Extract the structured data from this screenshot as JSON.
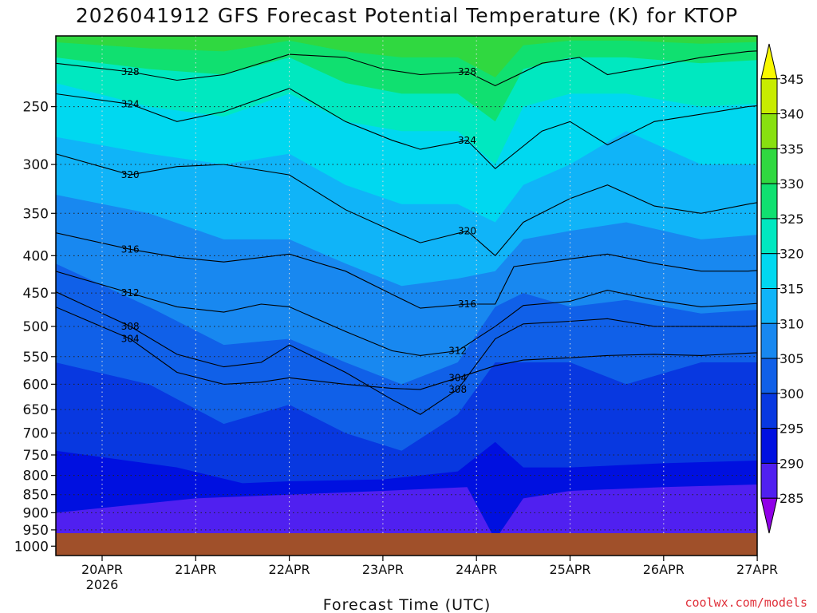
{
  "chart_data": {
    "type": "heatmap",
    "title": "2026041912 GFS Forecast Potential Temperature (K) for KTOP",
    "xlabel": "Forecast Time (UTC)",
    "ylabel": "",
    "credit": "coolwx.com/models",
    "y_axis": {
      "scale": "log-pressure",
      "inverted": true,
      "ticks": [
        "250",
        "300",
        "350",
        "400",
        "450",
        "500",
        "550",
        "600",
        "650",
        "700",
        "750",
        "800",
        "850",
        "900",
        "950",
        "1000"
      ]
    },
    "x_axis": {
      "ticks": [
        "20APR",
        "21APR",
        "22APR",
        "23APR",
        "24APR",
        "25APR",
        "26APR",
        "27APR"
      ],
      "year_label": "2026"
    },
    "colorbar": {
      "ticks": [
        "285",
        "290",
        "295",
        "300",
        "305",
        "310",
        "315",
        "320",
        "325",
        "330",
        "335",
        "340",
        "345"
      ],
      "colors": [
        "#9000e8",
        "#5020f0",
        "#0010e0",
        "#0838e0",
        "#1060e8",
        "#1888f0",
        "#10b4f8",
        "#00d8f0",
        "#00e8c0",
        "#10e070",
        "#30d840",
        "#88e010",
        "#c8ec00",
        "#f8f800"
      ]
    },
    "ground_color": "#a0502a",
    "contour_interval": 4,
    "grid": true,
    "series": [
      {
        "name": "328",
        "values": [
          [
            0.0,
            218
          ],
          [
            0.3,
            224
          ],
          [
            0.8,
            230
          ],
          [
            1.3,
            226
          ],
          [
            2.0,
            212
          ],
          [
            2.6,
            214
          ],
          [
            3.0,
            222
          ],
          [
            3.4,
            226
          ],
          [
            3.9,
            224
          ],
          [
            4.2,
            234
          ],
          [
            4.7,
            218
          ],
          [
            5.1,
            214
          ],
          [
            5.4,
            226
          ],
          [
            5.9,
            220
          ],
          [
            6.4,
            214
          ],
          [
            6.9,
            210
          ],
          [
            7.5,
            208
          ]
        ]
      },
      {
        "name": "324",
        "values": [
          [
            0.0,
            240
          ],
          [
            0.3,
            248
          ],
          [
            0.8,
            262
          ],
          [
            1.3,
            254
          ],
          [
            2.0,
            236
          ],
          [
            2.6,
            262
          ],
          [
            3.1,
            278
          ],
          [
            3.4,
            286
          ],
          [
            3.9,
            278
          ],
          [
            4.2,
            304
          ],
          [
            4.7,
            270
          ],
          [
            5.0,
            262
          ],
          [
            5.4,
            282
          ],
          [
            5.9,
            262
          ],
          [
            6.4,
            256
          ],
          [
            6.9,
            250
          ],
          [
            7.5,
            246
          ]
        ]
      },
      {
        "name": "320",
        "values": [
          [
            0.0,
            290
          ],
          [
            0.3,
            310
          ],
          [
            0.8,
            302
          ],
          [
            1.3,
            300
          ],
          [
            2.0,
            310
          ],
          [
            2.6,
            346
          ],
          [
            3.1,
            370
          ],
          [
            3.4,
            384
          ],
          [
            3.9,
            370
          ],
          [
            4.2,
            400
          ],
          [
            4.5,
            360
          ],
          [
            5.0,
            334
          ],
          [
            5.4,
            320
          ],
          [
            5.9,
            342
          ],
          [
            6.4,
            350
          ],
          [
            6.9,
            340
          ],
          [
            7.5,
            330
          ]
        ]
      },
      {
        "name": "316",
        "values": [
          [
            0.0,
            372
          ],
          [
            0.3,
            392
          ],
          [
            0.8,
            402
          ],
          [
            1.3,
            408
          ],
          [
            2.0,
            398
          ],
          [
            2.6,
            420
          ],
          [
            3.1,
            452
          ],
          [
            3.4,
            472
          ],
          [
            3.9,
            466
          ],
          [
            4.2,
            466
          ],
          [
            4.4,
            414
          ],
          [
            5.0,
            404
          ],
          [
            5.4,
            398
          ],
          [
            5.9,
            410
          ],
          [
            6.4,
            420
          ],
          [
            6.9,
            420
          ],
          [
            7.5,
            414
          ]
        ]
      },
      {
        "name": "312",
        "values": [
          [
            0.0,
            420
          ],
          [
            0.3,
            450
          ],
          [
            0.8,
            470
          ],
          [
            1.3,
            478
          ],
          [
            1.7,
            466
          ],
          [
            2.0,
            470
          ],
          [
            2.6,
            508
          ],
          [
            3.1,
            540
          ],
          [
            3.4,
            548
          ],
          [
            3.8,
            540
          ],
          [
            4.2,
            500
          ],
          [
            4.5,
            468
          ],
          [
            5.0,
            462
          ],
          [
            5.4,
            446
          ],
          [
            5.9,
            460
          ],
          [
            6.4,
            470
          ],
          [
            6.9,
            466
          ],
          [
            7.5,
            460
          ]
        ]
      },
      {
        "name": "308",
        "values": [
          [
            0.0,
            448
          ],
          [
            0.3,
            500
          ],
          [
            0.8,
            546
          ],
          [
            1.3,
            568
          ],
          [
            1.7,
            560
          ],
          [
            2.0,
            530
          ],
          [
            2.6,
            578
          ],
          [
            3.1,
            630
          ],
          [
            3.4,
            660
          ],
          [
            3.8,
            610
          ],
          [
            4.2,
            520
          ],
          [
            4.5,
            496
          ],
          [
            5.0,
            492
          ],
          [
            5.4,
            488
          ],
          [
            5.9,
            500
          ],
          [
            6.4,
            500
          ],
          [
            6.9,
            500
          ],
          [
            7.5,
            494
          ]
        ]
      },
      {
        "name": "304",
        "values": [
          [
            0.0,
            470
          ],
          [
            0.3,
            520
          ],
          [
            0.8,
            578
          ],
          [
            1.3,
            600
          ],
          [
            1.7,
            596
          ],
          [
            2.0,
            588
          ],
          [
            2.6,
            600
          ],
          [
            3.1,
            608
          ],
          [
            3.4,
            610
          ],
          [
            3.8,
            588
          ],
          [
            4.2,
            566
          ],
          [
            4.5,
            556
          ],
          [
            5.0,
            552
          ],
          [
            5.4,
            548
          ],
          [
            5.9,
            546
          ],
          [
            6.4,
            548
          ],
          [
            6.9,
            544
          ],
          [
            7.5,
            540
          ]
        ]
      }
    ]
  }
}
